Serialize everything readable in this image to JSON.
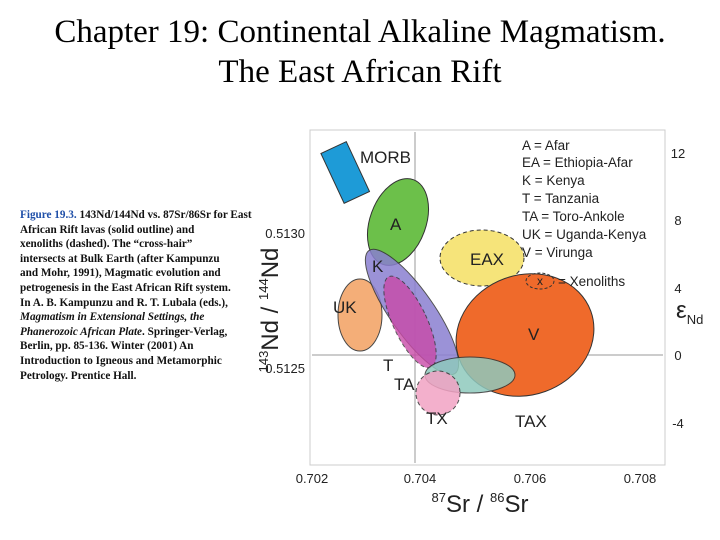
{
  "title": [
    "Chapter 19: Continental Alkaline Magmatism.",
    "The East African Rift"
  ],
  "caption": {
    "label": "Figure 19.3.",
    "lines": [
      "143Nd/144Nd vs. 87Sr/86Sr for East",
      "African Rift lavas (solid outline) and",
      "xenoliths (dashed). The “cross-hair”",
      "intersects at Bulk Earth (after Kampunzu",
      "and Mohr, 1991), Magmatic evolution and",
      "petrogenesis in the East African Rift system.",
      "In A. B. Kampunzu and R. T. Lubala (eds.),",
      "Magmatism in Extensional Settings, the",
      "Phanerozoic African Plate",
      ". Springer-Verlag,",
      "Berlin, pp. 85-136. Winter (2001) An",
      "Introduction to Igneous and Metamorphic",
      "Petrology. Prentice Hall."
    ]
  },
  "figure": {
    "fields": [
      "MORB",
      "A",
      "EAX",
      "K",
      "UK",
      "V",
      "T",
      "TA",
      "TX",
      "TAX"
    ],
    "legend": [
      "A = Afar",
      "EA = Ethiopia-Afar",
      "K = Kenya",
      "T = Tanzania",
      "TA = Toro-Ankole",
      "UK = Uganda-Kenya",
      "V = Virunga",
      "= Xenoliths"
    ],
    "legend_symbol": "x",
    "x_ticks": [
      "0.702",
      "0.704",
      "0.706",
      "0.708"
    ],
    "y_ticks": [
      "0.5130",
      "0.5125"
    ],
    "y2_ticks": [
      "12",
      "8",
      "4",
      "0",
      "-4"
    ],
    "x_label": [
      "87",
      "Sr / ",
      "86",
      "Sr"
    ],
    "y_label": [
      "143",
      "Nd / ",
      "144",
      "Nd"
    ],
    "y2_label": [
      "ε",
      "Nd"
    ]
  }
}
